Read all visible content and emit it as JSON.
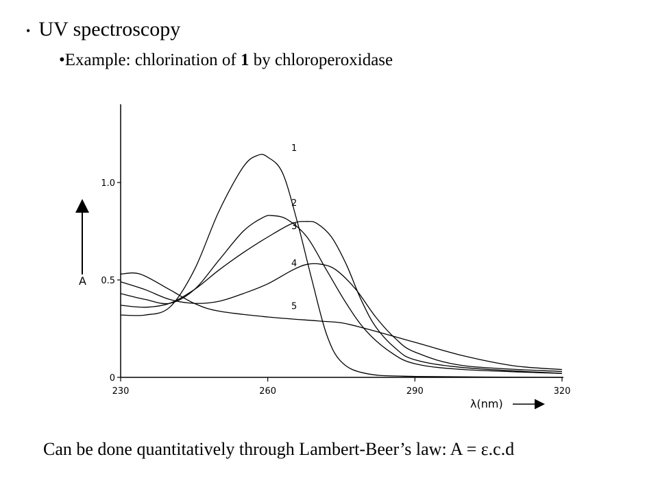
{
  "slide": {
    "bullet_main": "UV spectroscopy",
    "bullet_sub_prefix": "Example: chlorination of ",
    "bullet_sub_bold": "1",
    "bullet_sub_suffix": " by chloroperoxidase",
    "caption": "Can be done quantitatively through Lambert-Beer’s law: A = ε.c.d"
  },
  "chart_data": {
    "type": "line",
    "title": "",
    "xlabel": "λ(nm)",
    "ylabel": "A",
    "xlim": [
      230,
      320
    ],
    "ylim": [
      0,
      1.4
    ],
    "x_ticks": [
      "230",
      "260",
      "290",
      "320"
    ],
    "y_ticks": [
      "0",
      "0.5",
      "1.0"
    ],
    "grid": false,
    "series": [
      {
        "name": "1",
        "points": [
          [
            230,
            0.32
          ],
          [
            235,
            0.32
          ],
          [
            240,
            0.36
          ],
          [
            245,
            0.55
          ],
          [
            250,
            0.85
          ],
          [
            255,
            1.08
          ],
          [
            258,
            1.14
          ],
          [
            260,
            1.13
          ],
          [
            263,
            1.05
          ],
          [
            266,
            0.8
          ],
          [
            269,
            0.5
          ],
          [
            272,
            0.22
          ],
          [
            275,
            0.08
          ],
          [
            280,
            0.02
          ],
          [
            290,
            0.005
          ],
          [
            320,
            0.0
          ]
        ]
      },
      {
        "name": "2",
        "points": [
          [
            230,
            0.43
          ],
          [
            235,
            0.4
          ],
          [
            240,
            0.38
          ],
          [
            245,
            0.45
          ],
          [
            250,
            0.6
          ],
          [
            255,
            0.75
          ],
          [
            259,
            0.82
          ],
          [
            261,
            0.83
          ],
          [
            264,
            0.81
          ],
          [
            268,
            0.72
          ],
          [
            272,
            0.55
          ],
          [
            276,
            0.38
          ],
          [
            280,
            0.24
          ],
          [
            285,
            0.13
          ],
          [
            290,
            0.07
          ],
          [
            300,
            0.04
          ],
          [
            320,
            0.02
          ]
        ]
      },
      {
        "name": "3",
        "points": [
          [
            230,
            0.37
          ],
          [
            235,
            0.36
          ],
          [
            240,
            0.38
          ],
          [
            245,
            0.45
          ],
          [
            250,
            0.55
          ],
          [
            255,
            0.64
          ],
          [
            260,
            0.72
          ],
          [
            265,
            0.79
          ],
          [
            268,
            0.8
          ],
          [
            270,
            0.79
          ],
          [
            273,
            0.72
          ],
          [
            276,
            0.58
          ],
          [
            279,
            0.4
          ],
          [
            282,
            0.26
          ],
          [
            286,
            0.15
          ],
          [
            290,
            0.09
          ],
          [
            300,
            0.05
          ],
          [
            320,
            0.02
          ]
        ]
      },
      {
        "name": "4",
        "points": [
          [
            230,
            0.49
          ],
          [
            235,
            0.45
          ],
          [
            240,
            0.4
          ],
          [
            245,
            0.38
          ],
          [
            250,
            0.39
          ],
          [
            255,
            0.43
          ],
          [
            260,
            0.48
          ],
          [
            265,
            0.55
          ],
          [
            268,
            0.58
          ],
          [
            271,
            0.58
          ],
          [
            274,
            0.55
          ],
          [
            278,
            0.45
          ],
          [
            282,
            0.31
          ],
          [
            286,
            0.2
          ],
          [
            290,
            0.13
          ],
          [
            300,
            0.06
          ],
          [
            320,
            0.03
          ]
        ]
      },
      {
        "name": "5",
        "points": [
          [
            230,
            0.53
          ],
          [
            234,
            0.53
          ],
          [
            240,
            0.45
          ],
          [
            245,
            0.38
          ],
          [
            250,
            0.34
          ],
          [
            260,
            0.31
          ],
          [
            270,
            0.29
          ],
          [
            275,
            0.28
          ],
          [
            280,
            0.25
          ],
          [
            290,
            0.18
          ],
          [
            300,
            0.11
          ],
          [
            310,
            0.06
          ],
          [
            320,
            0.04
          ]
        ]
      }
    ]
  }
}
